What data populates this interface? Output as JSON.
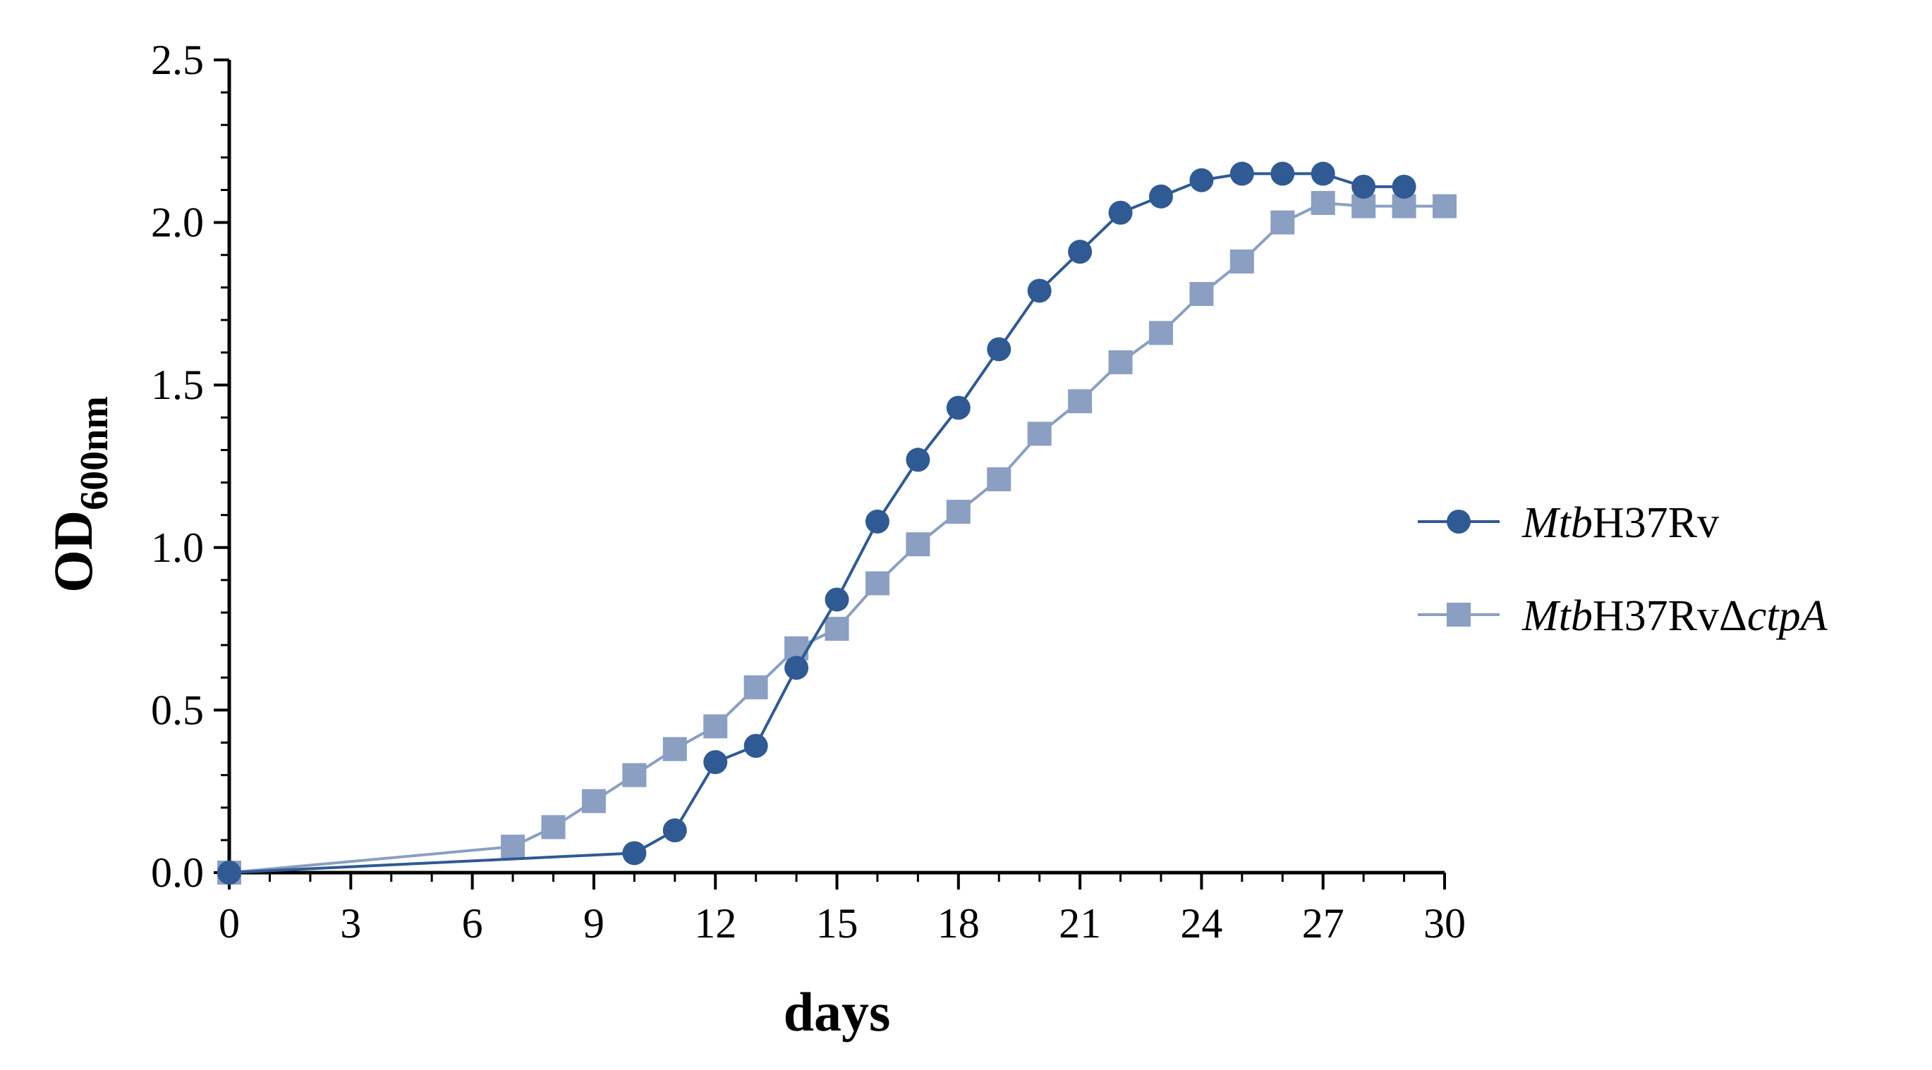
{
  "chart_data": {
    "type": "line",
    "title": "",
    "xlabel": "days",
    "ylabel": {
      "main": "OD",
      "subscript": "600nm"
    },
    "xlim": [
      0,
      30
    ],
    "ylim": [
      0,
      2.5
    ],
    "xticks": [
      0,
      3,
      6,
      9,
      12,
      15,
      18,
      21,
      24,
      27,
      30
    ],
    "xtick_labels": [
      "0",
      "3",
      "6",
      "9",
      "12",
      "15",
      "18",
      "21",
      "24",
      "27",
      "30"
    ],
    "yticks": [
      0,
      0.5,
      1.0,
      1.5,
      2.0,
      2.5
    ],
    "ytick_labels": [
      "0.0",
      "0.5",
      "1.0",
      "1.5",
      "2.0",
      "2.5"
    ],
    "grid": false,
    "legend_position": "right",
    "series": [
      {
        "name": "MtbH37Rv",
        "legend": {
          "italic": "Mtb",
          "normal": "H37Rv",
          "italic2": ""
        },
        "marker": "circle",
        "color": "#2f5a93",
        "x": [
          0,
          10,
          11,
          12,
          13,
          14,
          15,
          16,
          17,
          18,
          19,
          20,
          21,
          22,
          23,
          24,
          25,
          26,
          27,
          28,
          29
        ],
        "values": [
          0.0,
          0.06,
          0.13,
          0.34,
          0.39,
          0.63,
          0.84,
          1.08,
          1.27,
          1.43,
          1.61,
          1.79,
          1.91,
          2.03,
          2.08,
          2.13,
          2.15,
          2.15,
          2.15,
          2.11,
          2.11
        ]
      },
      {
        "name": "MtbH37RvΔctpA",
        "legend": {
          "italic": "Mtb",
          "normal": "H37RvΔ",
          "italic2": "ctpA"
        },
        "marker": "square",
        "color": "#8a9fc2",
        "x": [
          0,
          7,
          8,
          9,
          10,
          11,
          12,
          13,
          14,
          15,
          16,
          17,
          18,
          19,
          20,
          21,
          22,
          23,
          24,
          25,
          26,
          27,
          28,
          29,
          30
        ],
        "values": [
          0.0,
          0.08,
          0.14,
          0.22,
          0.3,
          0.38,
          0.45,
          0.57,
          0.69,
          0.75,
          0.89,
          1.01,
          1.11,
          1.21,
          1.35,
          1.45,
          1.57,
          1.66,
          1.78,
          1.88,
          2.0,
          2.06,
          2.05,
          2.05,
          2.05
        ]
      }
    ]
  }
}
